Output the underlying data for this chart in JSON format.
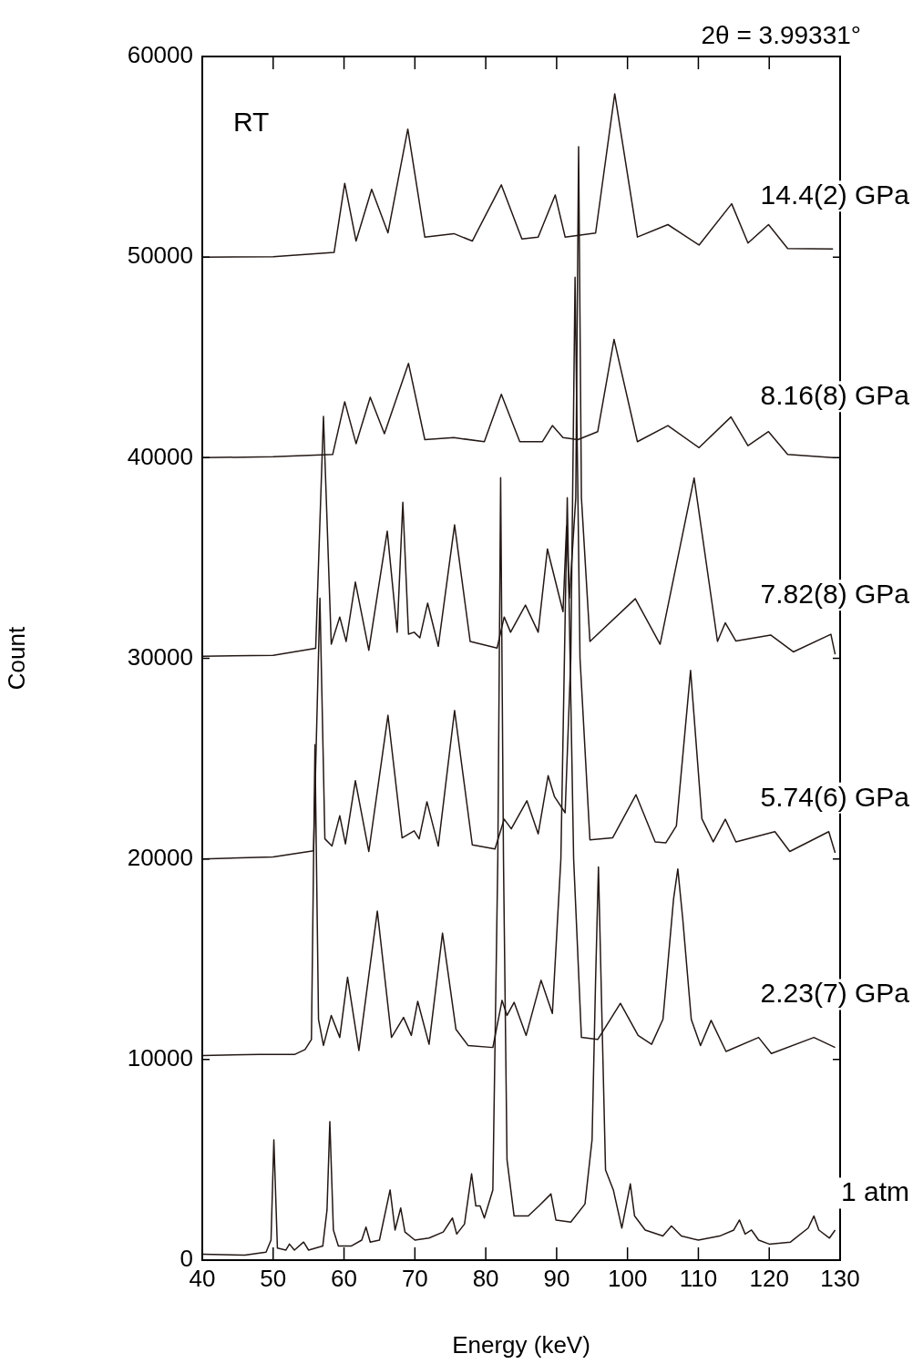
{
  "chart_data": {
    "type": "line",
    "title": "2θ = 3.99331°",
    "xlabel": "Energy (keV)",
    "ylabel": "Count",
    "annotations": [
      "RT"
    ],
    "xlim": [
      40,
      130
    ],
    "xticks": [
      40,
      50,
      60,
      70,
      80,
      90,
      100,
      110,
      120,
      130
    ],
    "ylim": [
      0,
      60000
    ],
    "yticks": [
      0,
      10000,
      20000,
      30000,
      40000,
      50000,
      60000
    ],
    "grid": false,
    "legend": false,
    "series": [
      {
        "name": "1 atm",
        "color": "#231815",
        "x": [
          40,
          46,
          49,
          49.7,
          50.1,
          50.6,
          51.8,
          52.3,
          53,
          54.3,
          55,
          57,
          57.6,
          58,
          58.5,
          59.2,
          61,
          62.5,
          63.1,
          63.7,
          65,
          66.5,
          67.2,
          68,
          68.6,
          70,
          72,
          74,
          75.3,
          75.9,
          77,
          78,
          78.6,
          79.2,
          79.8,
          81,
          81.7,
          82.1,
          82.5,
          83,
          84,
          86,
          87.5,
          89.2,
          89.9,
          92,
          94,
          95,
          95.5,
          95.9,
          96.4,
          96.9,
          98,
          99.2,
          100.4,
          101,
          102.5,
          105,
          106.2,
          107.6,
          110,
          113,
          115,
          115.8,
          116.6,
          117.5,
          118.5,
          120,
          123,
          125.5,
          126.3,
          127,
          128.5,
          129.3
        ],
        "values": [
          300,
          250,
          400,
          1000,
          6000,
          600,
          500,
          800,
          500,
          900,
          500,
          700,
          2500,
          6900,
          1500,
          700,
          700,
          1000,
          1650,
          900,
          1000,
          3500,
          1500,
          2600,
          1400,
          1000,
          1100,
          1400,
          2100,
          1300,
          1800,
          4300,
          2700,
          2700,
          2100,
          3500,
          20000,
          39000,
          20000,
          5000,
          2200,
          2200,
          2700,
          3300,
          2000,
          1900,
          2800,
          6000,
          14000,
          19600,
          12000,
          4500,
          3500,
          1600,
          3800,
          2200,
          1500,
          1200,
          1700,
          1200,
          1000,
          1200,
          1500,
          2000,
          1300,
          1500,
          1000,
          800,
          900,
          1600,
          2200,
          1500,
          1100,
          1500
        ]
      },
      {
        "name": "2.23(7) GPa",
        "color": "#231815",
        "x": [
          40,
          48,
          53,
          54.5,
          55.4,
          55.9,
          56.4,
          57.1,
          58.2,
          59.4,
          60.5,
          62.1,
          64.7,
          66.7,
          68.4,
          69.5,
          70.4,
          72,
          73.9,
          75.8,
          77.5,
          81,
          82.3,
          83,
          84,
          85.7,
          87.8,
          89.4,
          90.6,
          91.5,
          92.4,
          93.5,
          95.8,
          99,
          101.5,
          103.4,
          105,
          106.5,
          107.1,
          107.8,
          109,
          110.3,
          111.8,
          113.9,
          118.5,
          120.3,
          126.3,
          129.3
        ],
        "values": [
          10200,
          10250,
          10250,
          10500,
          11000,
          25700,
          12000,
          10700,
          12200,
          11100,
          14100,
          10450,
          17400,
          11100,
          12100,
          11200,
          12900,
          10760,
          16300,
          11500,
          10700,
          10600,
          12950,
          12200,
          12850,
          11200,
          13950,
          12300,
          20000,
          38000,
          20000,
          11100,
          11000,
          12800,
          11200,
          10760,
          12000,
          18000,
          19500,
          17000,
          12000,
          10700,
          11950,
          10400,
          11100,
          10300,
          11100,
          10600
        ]
      },
      {
        "name": "5.74(6) GPa",
        "color": "#231815",
        "x": [
          40,
          50,
          55.7,
          56.6,
          57.3,
          58.3,
          59.4,
          60.2,
          61.6,
          63.5,
          66.2,
          68.2,
          69.9,
          70.6,
          71.7,
          73.3,
          75.6,
          78.1,
          81.3,
          82.6,
          83.6,
          85.8,
          87.4,
          88.8,
          89.7,
          91.2,
          92,
          92.6,
          93.3,
          94.7,
          97.9,
          101.2,
          103.9,
          105.4,
          106.9,
          108.9,
          110.5,
          112.1,
          113.8,
          115.3,
          120.8,
          122.9,
          128.4,
          129.3
        ],
        "values": [
          20000,
          20100,
          20400,
          33000,
          21000,
          20640,
          22150,
          20750,
          23900,
          20370,
          27160,
          21050,
          21400,
          21000,
          22850,
          20640,
          27400,
          20700,
          20500,
          21980,
          21500,
          22900,
          21250,
          24150,
          23100,
          22300,
          30000,
          49000,
          30000,
          20950,
          21050,
          23200,
          20850,
          20800,
          21650,
          29400,
          22000,
          20850,
          21980,
          20850,
          21360,
          20370,
          21360,
          20300
        ]
      },
      {
        "name": "7.82(8) GPa",
        "color": "#231815",
        "x": [
          40,
          50,
          56,
          57.1,
          58.2,
          59.4,
          60.3,
          61.6,
          63.5,
          66.1,
          67.5,
          68.3,
          69.1,
          69.9,
          70.7,
          71.8,
          73.3,
          75.6,
          77.8,
          81.6,
          82.6,
          83.5,
          85.6,
          87.4,
          88.7,
          90.9,
          91.4,
          91.8,
          92.7,
          93.1,
          93.5,
          94.7,
          101.1,
          104.6,
          109.4,
          112.7,
          113.8,
          115.3,
          120.2,
          123.4,
          128.7,
          129.3
        ],
        "values": [
          30100,
          30150,
          30500,
          42060,
          30700,
          32060,
          30840,
          33800,
          30400,
          36340,
          31300,
          37780,
          31200,
          31300,
          31020,
          32750,
          30600,
          36650,
          30840,
          30510,
          32060,
          31300,
          32650,
          31300,
          35450,
          32330,
          36570,
          33000,
          38000,
          55500,
          38000,
          30840,
          32970,
          30700,
          38990,
          30840,
          31770,
          30860,
          31160,
          30320,
          31200,
          30200
        ]
      },
      {
        "name": "8.16(8) GPa",
        "color": "#231815",
        "x": [
          40,
          50,
          58.4,
          60.1,
          61.7,
          63.7,
          65.7,
          69.1,
          71.4,
          75.5,
          79.8,
          82.2,
          84.8,
          88,
          89.4,
          90.9,
          93,
          95.8,
          98.1,
          101.4,
          105.7,
          110.1,
          114.6,
          117,
          119.9,
          122.6,
          129
        ],
        "values": [
          40000,
          40050,
          40160,
          42790,
          40700,
          43010,
          41200,
          44700,
          40900,
          41000,
          40800,
          43160,
          40800,
          40800,
          41600,
          41000,
          40900,
          41300,
          45900,
          40800,
          41600,
          40500,
          42030,
          40600,
          41300,
          40160,
          40000
        ]
      },
      {
        "name": "14.4(2) GPa",
        "color": "#231815",
        "x": [
          40,
          50,
          58.6,
          60.1,
          61.7,
          63.9,
          66.2,
          69,
          71.4,
          75.5,
          78.1,
          82.2,
          85.1,
          87.4,
          89.8,
          91.2,
          95.5,
          98.2,
          101.4,
          105.7,
          110.1,
          114.7,
          117,
          119.9,
          122.6,
          129
        ],
        "values": [
          50000,
          50020,
          50230,
          53680,
          50800,
          53380,
          51210,
          56380,
          51000,
          51170,
          50800,
          53600,
          50900,
          51000,
          53100,
          51000,
          51200,
          58140,
          51000,
          51620,
          50600,
          52660,
          50700,
          51620,
          50430,
          50400
        ]
      }
    ]
  }
}
